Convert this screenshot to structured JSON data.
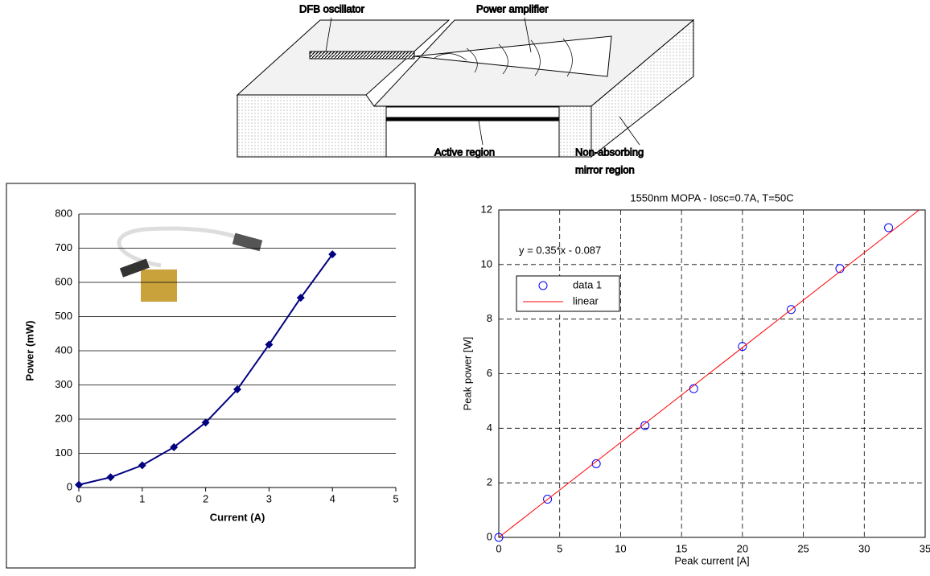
{
  "diagram": {
    "labels": [
      "DFB oscillator",
      "Power amplifier",
      "Active region"
    ],
    "mirror_label": [
      "Non-absorbing",
      "mirror region"
    ]
  },
  "chart_data": [
    {
      "type": "line",
      "xlabel": "Current (A)",
      "ylabel": "Power (mW)",
      "x": [
        0,
        0.5,
        1,
        1.5,
        2,
        2.5,
        3,
        3.5,
        4
      ],
      "series": [
        {
          "name": null,
          "color": "#000080",
          "values": [
            8,
            30,
            65,
            118,
            190,
            287,
            418,
            555,
            682
          ]
        }
      ],
      "xlim": [
        0,
        5
      ],
      "xticks": [
        0,
        1,
        2,
        3,
        4,
        5
      ],
      "ylim": [
        0,
        800
      ],
      "yticks": [
        0,
        100,
        200,
        300,
        400,
        500,
        600,
        700,
        800
      ],
      "grid": "horizontal"
    },
    {
      "type": "scatter",
      "title": "1550nm MOPA - Iosc=0.7A, T=50C",
      "xlabel": "Peak current [A]",
      "ylabel": "Peak power [W]",
      "annotation": "y = 0.35*x - 0.087",
      "x": [
        0,
        4,
        8,
        12,
        16,
        20,
        24,
        28,
        32
      ],
      "series": [
        {
          "name": "data 1",
          "color": "#0000ff",
          "values": [
            0,
            1.4,
            2.7,
            4.1,
            5.45,
            7.0,
            8.35,
            9.85,
            11.35
          ]
        },
        {
          "name": "linear",
          "color": "#ff0000",
          "x": [
            0,
            34.5
          ],
          "values": [
            0,
            12
          ]
        }
      ],
      "xlim": [
        0,
        35
      ],
      "xticks": [
        0,
        5,
        10,
        15,
        20,
        25,
        30,
        35
      ],
      "ylim": [
        0,
        12
      ],
      "yticks": [
        0,
        2,
        4,
        6,
        8,
        10,
        12
      ],
      "grid": "dashed"
    }
  ]
}
